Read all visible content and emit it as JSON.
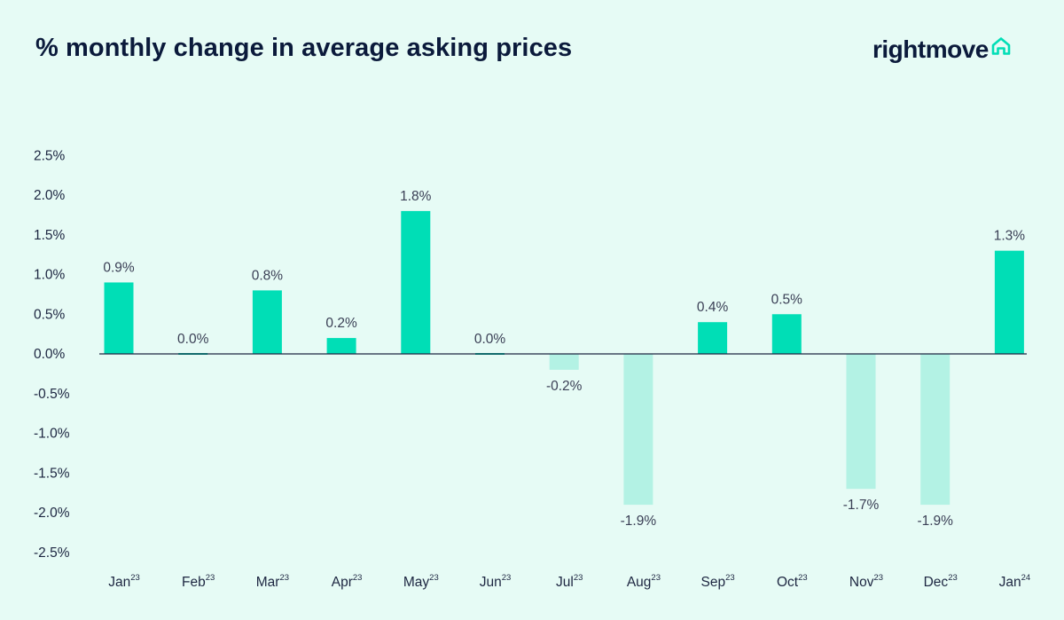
{
  "title": "% monthly change in average asking prices",
  "logo": {
    "text": "rightmove",
    "icon": "house-outline-icon"
  },
  "colors": {
    "background": "#e6fbf5",
    "positive_bar": "#00deb6",
    "negative_bar": "#b3f2e4",
    "title": "#0b1a3b"
  },
  "chart_data": {
    "type": "bar",
    "categories": [
      {
        "month": "Jan",
        "year": "23"
      },
      {
        "month": "Feb",
        "year": "23"
      },
      {
        "month": "Mar",
        "year": "23"
      },
      {
        "month": "Apr",
        "year": "23"
      },
      {
        "month": "May",
        "year": "23"
      },
      {
        "month": "Jun",
        "year": "23"
      },
      {
        "month": "Jul",
        "year": "23"
      },
      {
        "month": "Aug",
        "year": "23"
      },
      {
        "month": "Sep",
        "year": "23"
      },
      {
        "month": "Oct",
        "year": "23"
      },
      {
        "month": "Nov",
        "year": "23"
      },
      {
        "month": "Dec",
        "year": "23"
      },
      {
        "month": "Jan",
        "year": "24"
      }
    ],
    "values": [
      0.9,
      0.0,
      0.8,
      0.2,
      1.8,
      0.0,
      -0.2,
      -1.9,
      0.4,
      0.5,
      -1.7,
      -1.9,
      1.3
    ],
    "data_labels": [
      "0.9%",
      "0.0%",
      "0.8%",
      "0.2%",
      "1.8%",
      "0.0%",
      "-0.2%",
      "-1.9%",
      "0.4%",
      "0.5%",
      "-1.7%",
      "-1.9%",
      "1.3%"
    ],
    "y_ticks": [
      2.5,
      2.0,
      1.5,
      1.0,
      0.5,
      0.0,
      -0.5,
      -1.0,
      -1.5,
      -2.0,
      -2.5
    ],
    "y_tick_labels": [
      "2.5%",
      "2.0%",
      "1.5%",
      "1.0%",
      "0.5%",
      "0.0%",
      "-0.5%",
      "-1.0%",
      "-1.5%",
      "-2.0%",
      "-2.5%"
    ],
    "ylim": [
      -2.5,
      2.5
    ],
    "grid": false,
    "legend": "none"
  }
}
